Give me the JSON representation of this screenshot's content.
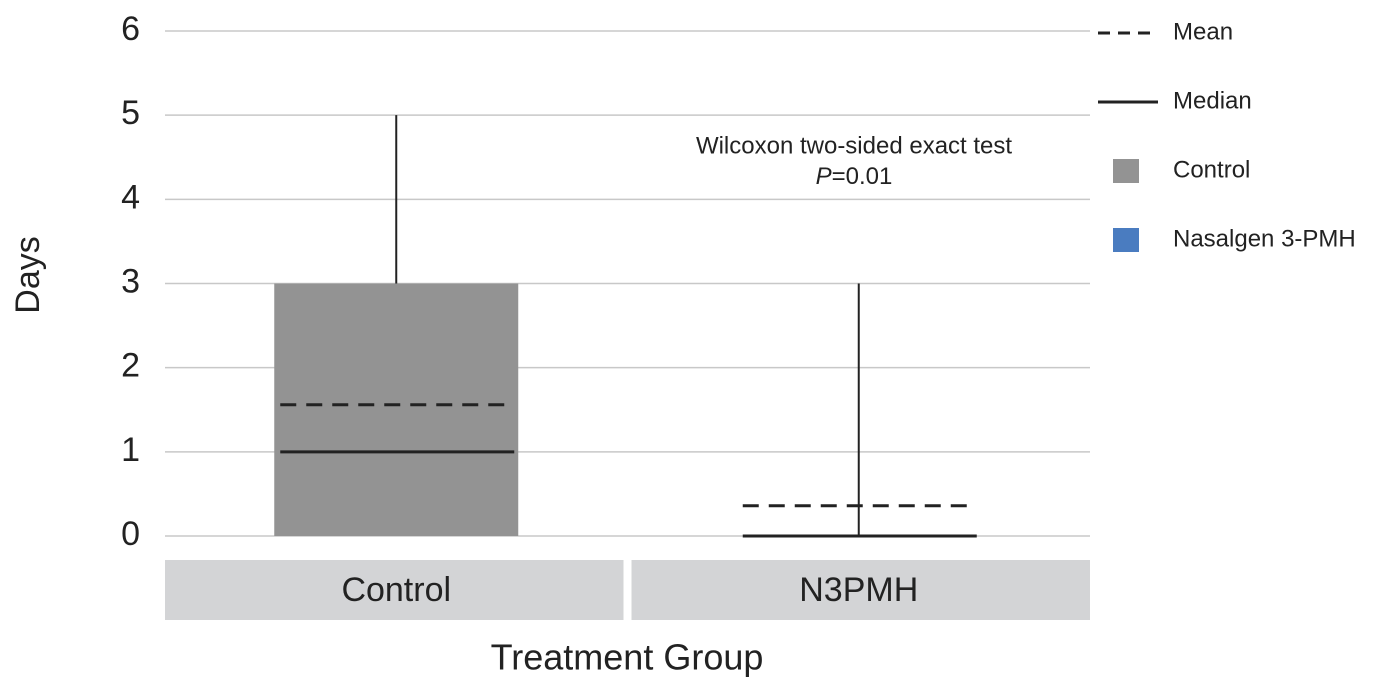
{
  "chart_data": {
    "type": "box",
    "y_label": "Days",
    "x_label": "Treatment Group",
    "categories": [
      "Control",
      "N3PMH"
    ],
    "series": [
      {
        "name": "Control",
        "color": "#939393",
        "min": 0,
        "q1": 0,
        "median": 1,
        "q3": 3,
        "max": 5,
        "mean": 1.56
      },
      {
        "name": "Nasalgen 3-PMH",
        "color": "#4a7cc0",
        "min": 0,
        "q1": 0,
        "median": 0,
        "q3": 0,
        "max": 3,
        "mean": 0.36
      }
    ],
    "legend_lines": [
      {
        "name": "Mean",
        "style": "dashed"
      },
      {
        "name": "Median",
        "style": "solid"
      }
    ],
    "annotations": [
      "Wilcoxon two-sided exact test",
      [
        "P",
        "=0.01"
      ]
    ],
    "ylim": [
      0,
      6
    ],
    "yticks": [
      0,
      1,
      2,
      3,
      4,
      5,
      6
    ],
    "grid": true,
    "legend": "right"
  }
}
